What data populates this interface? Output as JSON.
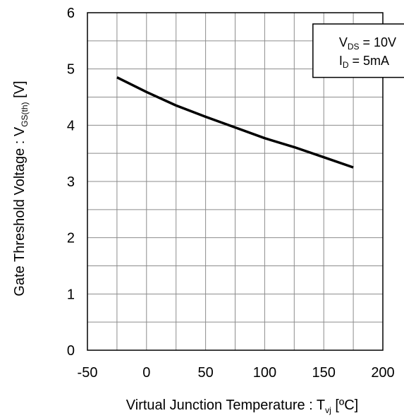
{
  "chart_data": {
    "type": "line",
    "xlabel": {
      "main": "Virtual Junction Temperature : T",
      "sub": "vj",
      "unit": " [ºC]"
    },
    "ylabel": {
      "main": "Gate Threshold Voltage : V",
      "sub": "GS(th)",
      "unit": " [V]"
    },
    "xlim": [
      -50,
      200
    ],
    "ylim": [
      0,
      6
    ],
    "x_ticks": [
      -50,
      0,
      50,
      100,
      150,
      200
    ],
    "y_ticks": [
      0,
      1,
      2,
      3,
      4,
      5,
      6
    ],
    "x_minor_step": 25,
    "y_minor_step": 0.5,
    "grid": true,
    "legend_position": "top-right",
    "conditions": [
      {
        "main": "V",
        "sub": "DS",
        "value": " = 10V"
      },
      {
        "main": "I",
        "sub": "D",
        "value": " = 5mA"
      }
    ],
    "series": [
      {
        "color": "#000000",
        "x": [
          -25,
          0,
          25,
          50,
          75,
          100,
          125,
          150,
          175
        ],
        "y": [
          4.85,
          4.59,
          4.35,
          4.15,
          3.96,
          3.77,
          3.61,
          3.43,
          3.25
        ]
      }
    ]
  }
}
